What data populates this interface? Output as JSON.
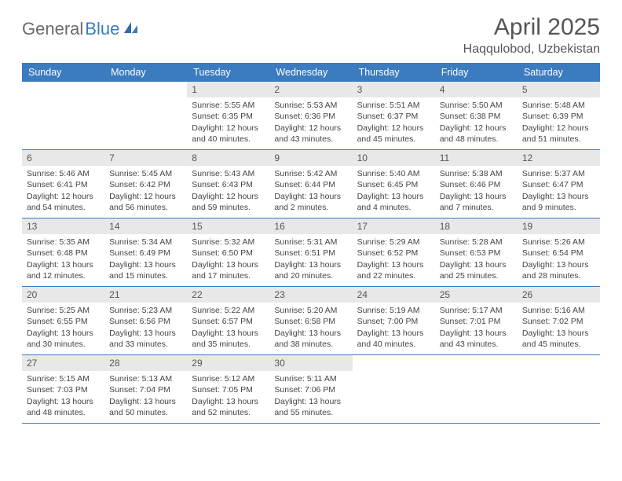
{
  "brand": {
    "part1": "General",
    "part2": "Blue"
  },
  "title": "April 2025",
  "location": "Haqqulobod, Uzbekistan",
  "colors": {
    "header_bg": "#3b7bbf",
    "header_text": "#ffffff",
    "daynum_bg": "#e8e8e8",
    "border": "#3b7bbf",
    "title_color": "#555555",
    "body_text": "#444444",
    "logo_gray": "#6b6b6b",
    "logo_blue": "#3b7bbf",
    "background": "#ffffff"
  },
  "typography": {
    "title_fontsize": 30,
    "location_fontsize": 16,
    "weekday_fontsize": 12.5,
    "daynum_fontsize": 12,
    "body_fontsize": 10.5
  },
  "weekdays": [
    "Sunday",
    "Monday",
    "Tuesday",
    "Wednesday",
    "Thursday",
    "Friday",
    "Saturday"
  ],
  "weeks": [
    [
      {
        "num": "",
        "sunrise": "",
        "sunset": "",
        "daylight": ""
      },
      {
        "num": "",
        "sunrise": "",
        "sunset": "",
        "daylight": ""
      },
      {
        "num": "1",
        "sunrise": "Sunrise: 5:55 AM",
        "sunset": "Sunset: 6:35 PM",
        "daylight": "Daylight: 12 hours and 40 minutes."
      },
      {
        "num": "2",
        "sunrise": "Sunrise: 5:53 AM",
        "sunset": "Sunset: 6:36 PM",
        "daylight": "Daylight: 12 hours and 43 minutes."
      },
      {
        "num": "3",
        "sunrise": "Sunrise: 5:51 AM",
        "sunset": "Sunset: 6:37 PM",
        "daylight": "Daylight: 12 hours and 45 minutes."
      },
      {
        "num": "4",
        "sunrise": "Sunrise: 5:50 AM",
        "sunset": "Sunset: 6:38 PM",
        "daylight": "Daylight: 12 hours and 48 minutes."
      },
      {
        "num": "5",
        "sunrise": "Sunrise: 5:48 AM",
        "sunset": "Sunset: 6:39 PM",
        "daylight": "Daylight: 12 hours and 51 minutes."
      }
    ],
    [
      {
        "num": "6",
        "sunrise": "Sunrise: 5:46 AM",
        "sunset": "Sunset: 6:41 PM",
        "daylight": "Daylight: 12 hours and 54 minutes."
      },
      {
        "num": "7",
        "sunrise": "Sunrise: 5:45 AM",
        "sunset": "Sunset: 6:42 PM",
        "daylight": "Daylight: 12 hours and 56 minutes."
      },
      {
        "num": "8",
        "sunrise": "Sunrise: 5:43 AM",
        "sunset": "Sunset: 6:43 PM",
        "daylight": "Daylight: 12 hours and 59 minutes."
      },
      {
        "num": "9",
        "sunrise": "Sunrise: 5:42 AM",
        "sunset": "Sunset: 6:44 PM",
        "daylight": "Daylight: 13 hours and 2 minutes."
      },
      {
        "num": "10",
        "sunrise": "Sunrise: 5:40 AM",
        "sunset": "Sunset: 6:45 PM",
        "daylight": "Daylight: 13 hours and 4 minutes."
      },
      {
        "num": "11",
        "sunrise": "Sunrise: 5:38 AM",
        "sunset": "Sunset: 6:46 PM",
        "daylight": "Daylight: 13 hours and 7 minutes."
      },
      {
        "num": "12",
        "sunrise": "Sunrise: 5:37 AM",
        "sunset": "Sunset: 6:47 PM",
        "daylight": "Daylight: 13 hours and 9 minutes."
      }
    ],
    [
      {
        "num": "13",
        "sunrise": "Sunrise: 5:35 AM",
        "sunset": "Sunset: 6:48 PM",
        "daylight": "Daylight: 13 hours and 12 minutes."
      },
      {
        "num": "14",
        "sunrise": "Sunrise: 5:34 AM",
        "sunset": "Sunset: 6:49 PM",
        "daylight": "Daylight: 13 hours and 15 minutes."
      },
      {
        "num": "15",
        "sunrise": "Sunrise: 5:32 AM",
        "sunset": "Sunset: 6:50 PM",
        "daylight": "Daylight: 13 hours and 17 minutes."
      },
      {
        "num": "16",
        "sunrise": "Sunrise: 5:31 AM",
        "sunset": "Sunset: 6:51 PM",
        "daylight": "Daylight: 13 hours and 20 minutes."
      },
      {
        "num": "17",
        "sunrise": "Sunrise: 5:29 AM",
        "sunset": "Sunset: 6:52 PM",
        "daylight": "Daylight: 13 hours and 22 minutes."
      },
      {
        "num": "18",
        "sunrise": "Sunrise: 5:28 AM",
        "sunset": "Sunset: 6:53 PM",
        "daylight": "Daylight: 13 hours and 25 minutes."
      },
      {
        "num": "19",
        "sunrise": "Sunrise: 5:26 AM",
        "sunset": "Sunset: 6:54 PM",
        "daylight": "Daylight: 13 hours and 28 minutes."
      }
    ],
    [
      {
        "num": "20",
        "sunrise": "Sunrise: 5:25 AM",
        "sunset": "Sunset: 6:55 PM",
        "daylight": "Daylight: 13 hours and 30 minutes."
      },
      {
        "num": "21",
        "sunrise": "Sunrise: 5:23 AM",
        "sunset": "Sunset: 6:56 PM",
        "daylight": "Daylight: 13 hours and 33 minutes."
      },
      {
        "num": "22",
        "sunrise": "Sunrise: 5:22 AM",
        "sunset": "Sunset: 6:57 PM",
        "daylight": "Daylight: 13 hours and 35 minutes."
      },
      {
        "num": "23",
        "sunrise": "Sunrise: 5:20 AM",
        "sunset": "Sunset: 6:58 PM",
        "daylight": "Daylight: 13 hours and 38 minutes."
      },
      {
        "num": "24",
        "sunrise": "Sunrise: 5:19 AM",
        "sunset": "Sunset: 7:00 PM",
        "daylight": "Daylight: 13 hours and 40 minutes."
      },
      {
        "num": "25",
        "sunrise": "Sunrise: 5:17 AM",
        "sunset": "Sunset: 7:01 PM",
        "daylight": "Daylight: 13 hours and 43 minutes."
      },
      {
        "num": "26",
        "sunrise": "Sunrise: 5:16 AM",
        "sunset": "Sunset: 7:02 PM",
        "daylight": "Daylight: 13 hours and 45 minutes."
      }
    ],
    [
      {
        "num": "27",
        "sunrise": "Sunrise: 5:15 AM",
        "sunset": "Sunset: 7:03 PM",
        "daylight": "Daylight: 13 hours and 48 minutes."
      },
      {
        "num": "28",
        "sunrise": "Sunrise: 5:13 AM",
        "sunset": "Sunset: 7:04 PM",
        "daylight": "Daylight: 13 hours and 50 minutes."
      },
      {
        "num": "29",
        "sunrise": "Sunrise: 5:12 AM",
        "sunset": "Sunset: 7:05 PM",
        "daylight": "Daylight: 13 hours and 52 minutes."
      },
      {
        "num": "30",
        "sunrise": "Sunrise: 5:11 AM",
        "sunset": "Sunset: 7:06 PM",
        "daylight": "Daylight: 13 hours and 55 minutes."
      },
      {
        "num": "",
        "sunrise": "",
        "sunset": "",
        "daylight": ""
      },
      {
        "num": "",
        "sunrise": "",
        "sunset": "",
        "daylight": ""
      },
      {
        "num": "",
        "sunrise": "",
        "sunset": "",
        "daylight": ""
      }
    ]
  ]
}
